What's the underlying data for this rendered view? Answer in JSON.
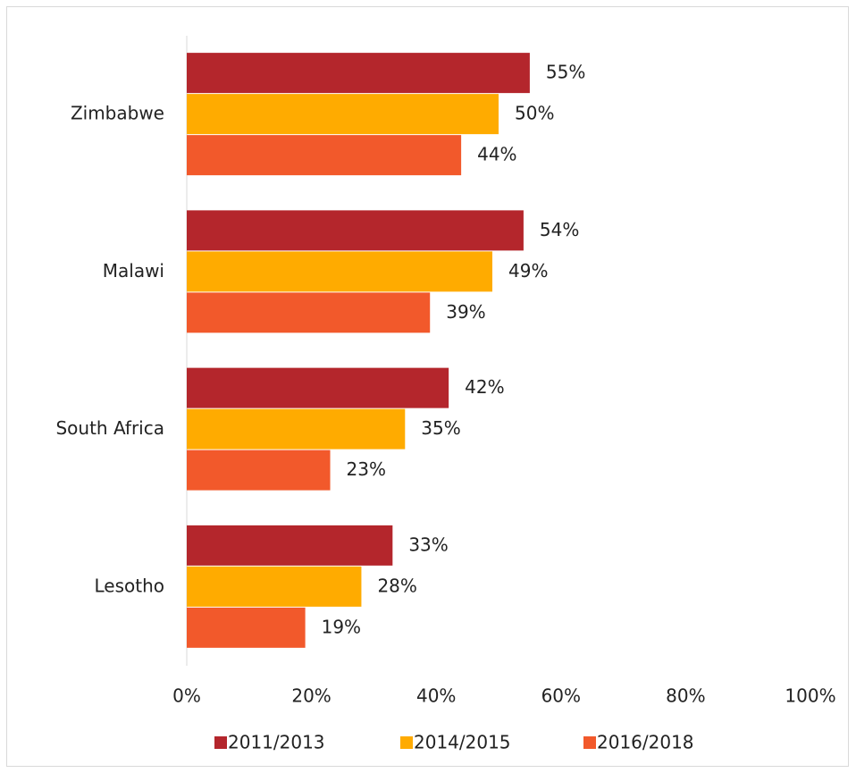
{
  "chart_data": {
    "type": "hbar",
    "categories": [
      "Zimbabwe",
      "Malawi",
      "South Africa",
      "Lesotho"
    ],
    "series": [
      {
        "name": "2011/2013",
        "color": "#b4262c",
        "values": [
          55,
          54,
          42,
          33
        ],
        "value_labels": [
          "55%",
          "54%",
          "42%",
          "33%"
        ]
      },
      {
        "name": "2014/2015",
        "color": "#ffab00",
        "values": [
          50,
          49,
          35,
          28
        ],
        "value_labels": [
          "50%",
          "49%",
          "35%",
          "28%"
        ]
      },
      {
        "name": "2016/2018",
        "color": "#f2592b",
        "values": [
          44,
          39,
          23,
          19
        ],
        "value_labels": [
          "44%",
          "39%",
          "23%",
          "19%"
        ]
      }
    ],
    "xlim": [
      0,
      100
    ],
    "xticks": [
      {
        "value": 0,
        "label": "0%"
      },
      {
        "value": 20,
        "label": "20%"
      },
      {
        "value": 40,
        "label": "40%"
      },
      {
        "value": 60,
        "label": "60%"
      },
      {
        "value": 80,
        "label": "80%"
      },
      {
        "value": 100,
        "label": "100%"
      }
    ],
    "grid": false,
    "legend": "bottom"
  }
}
